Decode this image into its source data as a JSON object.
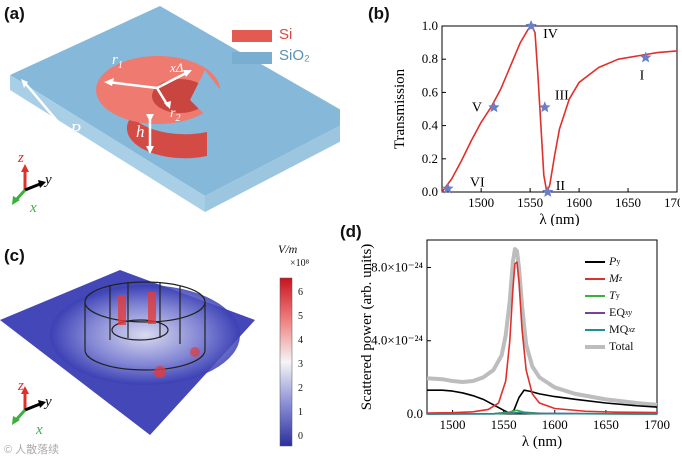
{
  "panels": {
    "a": {
      "label": "(a)",
      "legend": [
        {
          "name": "Si",
          "color": "#e25a52"
        },
        {
          "name": "SiO₂",
          "color": "#7aaed0"
        }
      ],
      "dims": {
        "r1": "r",
        "r1_sub": "1",
        "r2": "r",
        "r2_sub": "2",
        "xdelta": "xΔ",
        "xdelta_sub": "n",
        "h": "h",
        "P": "P"
      },
      "axes": {
        "z": "z",
        "y": "y",
        "x": "x"
      }
    },
    "b": {
      "label": "(b)"
    },
    "c": {
      "label": "(c)",
      "colorbar": {
        "title": "V/m",
        "scale": "×10⁸",
        "ticks": [
          "6",
          "5",
          "4",
          "3",
          "2",
          "1",
          "0"
        ]
      },
      "axes": {
        "z": "z",
        "y": "y",
        "x": "x"
      },
      "watermark": "© 人散落续"
    },
    "d": {
      "label": "(d)"
    }
  },
  "colors": {
    "si": "#e25a52",
    "sio2": "#7aaed0",
    "Py": "#000000",
    "Mz": "#e0302b",
    "Ty": "#3ab03a",
    "EQxy": "#7a3fa0",
    "MQxz": "#1f8f8f",
    "Total": "#bdbdbd",
    "star": "#6a7fc8"
  },
  "chart_data": [
    {
      "id": "b",
      "type": "line",
      "xlabel": "λ (nm)",
      "ylabel": "Transmission",
      "xlim": [
        1460,
        1700
      ],
      "ylim": [
        0,
        1.0
      ],
      "xticks": [
        1500,
        1550,
        1600,
        1650,
        1700
      ],
      "yticks": [
        0,
        0.2,
        0.4,
        0.6,
        0.8,
        1.0
      ],
      "yticklabels": [
        "0.0",
        "0.2",
        "0.4",
        "0.6",
        "0.8",
        "1.0"
      ],
      "series": [
        {
          "name": "Transmission",
          "color": "#e0302b",
          "x": [
            1460,
            1470,
            1480,
            1490,
            1500,
            1510,
            1520,
            1530,
            1540,
            1548,
            1552,
            1555,
            1558,
            1561,
            1564,
            1567,
            1570,
            1575,
            1580,
            1590,
            1600,
            1620,
            1640,
            1660,
            1680,
            1700
          ],
          "y": [
            0.0,
            0.08,
            0.19,
            0.31,
            0.42,
            0.51,
            0.62,
            0.76,
            0.9,
            0.98,
            1.0,
            0.96,
            0.7,
            0.4,
            0.1,
            0.0,
            0.04,
            0.22,
            0.38,
            0.56,
            0.66,
            0.75,
            0.8,
            0.82,
            0.84,
            0.85
          ]
        }
      ],
      "markers": [
        {
          "label": "I",
          "x": 1668,
          "y": 0.81
        },
        {
          "label": "II",
          "x": 1568,
          "y": 0.0
        },
        {
          "label": "III",
          "x": 1565,
          "y": 0.51
        },
        {
          "label": "IV",
          "x": 1551,
          "y": 1.0
        },
        {
          "label": "V",
          "x": 1513,
          "y": 0.51
        },
        {
          "label": "VI",
          "x": 1466,
          "y": 0.02
        }
      ]
    },
    {
      "id": "d",
      "type": "line",
      "xlabel": "λ (nm)",
      "ylabel": "Scattered power (arb. units)",
      "xlim": [
        1475,
        1700
      ],
      "ylim": [
        0,
        9.5
      ],
      "xticks": [
        1500,
        1550,
        1600,
        1650,
        1700
      ],
      "yticks": [
        0,
        4,
        8
      ],
      "yticklabels": [
        "0.0",
        "4.0×10⁻²⁴",
        "8.0×10⁻²⁴"
      ],
      "series": [
        {
          "name": "Py",
          "color": "#000000",
          "x": [
            1475,
            1490,
            1500,
            1510,
            1520,
            1530,
            1540,
            1550,
            1556,
            1560,
            1565,
            1570,
            1575,
            1585,
            1600,
            1620,
            1650,
            1680,
            1700
          ],
          "y": [
            1.3,
            1.3,
            1.25,
            1.15,
            1.0,
            0.8,
            0.5,
            0.2,
            0.05,
            0.2,
            0.9,
            1.3,
            1.25,
            1.1,
            0.95,
            0.8,
            0.6,
            0.45,
            0.38
          ]
        },
        {
          "name": "Mz",
          "color": "#e0302b",
          "x": [
            1475,
            1500,
            1520,
            1535,
            1545,
            1552,
            1556,
            1559,
            1561,
            1563,
            1565,
            1568,
            1572,
            1578,
            1585,
            1600,
            1630,
            1660,
            1700
          ],
          "y": [
            0.05,
            0.07,
            0.12,
            0.25,
            0.6,
            1.8,
            4.0,
            6.8,
            8.2,
            8.3,
            7.2,
            4.6,
            2.4,
            1.1,
            0.6,
            0.3,
            0.15,
            0.1,
            0.08
          ]
        },
        {
          "name": "Ty",
          "color": "#3ab03a",
          "x": [
            1475,
            1540,
            1555,
            1563,
            1570,
            1590,
            1700
          ],
          "y": [
            0.0,
            0.02,
            0.1,
            0.2,
            0.1,
            0.02,
            0.0
          ]
        },
        {
          "name": "EQxy",
          "color": "#7a3fa0",
          "x": [
            1475,
            1540,
            1560,
            1565,
            1575,
            1700
          ],
          "y": [
            0.0,
            0.01,
            0.06,
            0.08,
            0.04,
            0.0
          ]
        },
        {
          "name": "MQxz",
          "color": "#1f8f8f",
          "x": [
            1475,
            1540,
            1560,
            1565,
            1575,
            1700
          ],
          "y": [
            0.0,
            0.01,
            0.05,
            0.07,
            0.03,
            0.0
          ]
        },
        {
          "name": "Total",
          "color": "#bdbdbd",
          "x": [
            1475,
            1490,
            1500,
            1510,
            1520,
            1530,
            1540,
            1548,
            1552,
            1556,
            1559,
            1561,
            1563,
            1565,
            1568,
            1572,
            1578,
            1585,
            1600,
            1620,
            1650,
            1680,
            1700
          ],
          "y": [
            1.95,
            1.9,
            1.8,
            1.75,
            1.8,
            2.0,
            2.4,
            3.2,
            4.3,
            6.2,
            8.3,
            9.0,
            8.9,
            8.0,
            5.9,
            3.8,
            2.6,
            2.0,
            1.45,
            1.1,
            0.8,
            0.6,
            0.5
          ]
        }
      ],
      "legend": [
        {
          "key": "Py",
          "main": "P",
          "sub": "y"
        },
        {
          "key": "Mz",
          "main": "M",
          "sub": "z"
        },
        {
          "key": "Ty",
          "main": "T",
          "sub": "y"
        },
        {
          "key": "EQxy",
          "main": "EQ",
          "sub": "xy"
        },
        {
          "key": "MQxz",
          "main": "MQ",
          "sub": "xz"
        },
        {
          "key": "Total",
          "main": "Total",
          "sub": ""
        }
      ]
    }
  ]
}
